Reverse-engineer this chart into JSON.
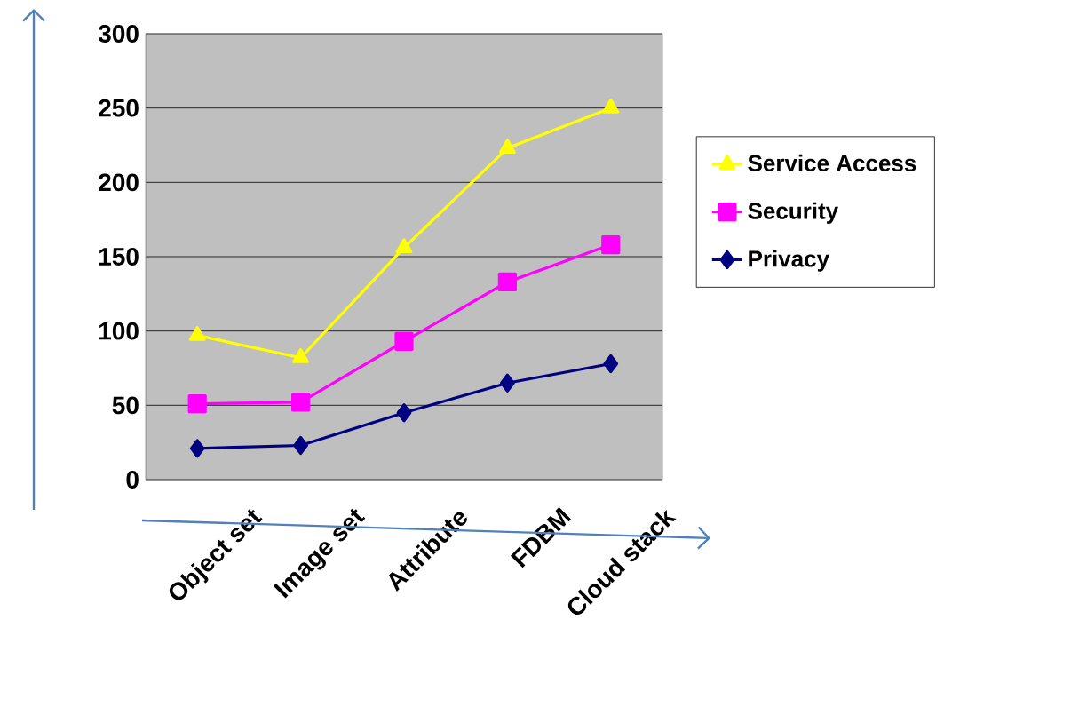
{
  "chart_data": {
    "type": "line",
    "categories": [
      "Object set",
      "Image set",
      "Attribute",
      "FDBM",
      "Cloud stack"
    ],
    "series": [
      {
        "name": "Service Access",
        "color": "#ffff00",
        "marker": "triangle",
        "values": [
          97,
          82,
          156,
          223,
          250
        ]
      },
      {
        "name": "Security",
        "color": "#ff00ff",
        "marker": "square",
        "values": [
          51,
          52,
          93,
          133,
          158
        ]
      },
      {
        "name": "Privacy",
        "color": "#000080",
        "marker": "diamond",
        "values": [
          21,
          23,
          45,
          65,
          78
        ]
      }
    ],
    "ylim": [
      0,
      300
    ],
    "yticks": [
      0,
      50,
      100,
      150,
      200,
      250,
      300
    ],
    "grid": "y",
    "legend": "right"
  }
}
